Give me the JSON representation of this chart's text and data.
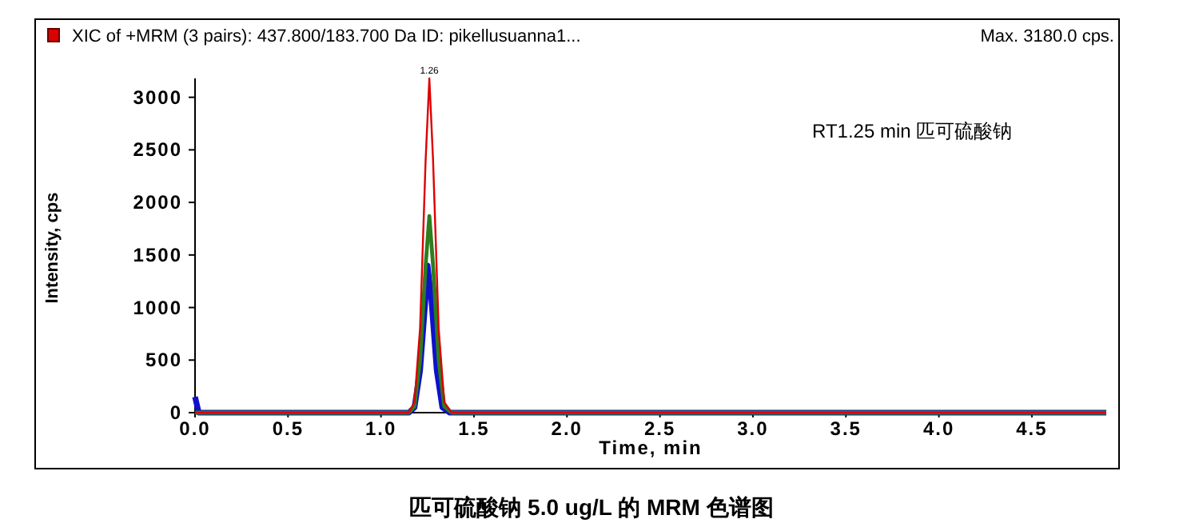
{
  "chart_data": {
    "type": "line",
    "title": "XIC of +MRM (3 pairs): 437.800/183.700 Da ID: pikellusuanna1...",
    "subtitle": "Max. 3180.0 cps.",
    "xlabel": "Time, min",
    "ylabel": "Intensity, cps",
    "xlim": [
      0,
      4.9
    ],
    "ylim": [
      0,
      3180
    ],
    "xticks": [
      {
        "value": 0,
        "label": "0.0"
      },
      {
        "value": 0.5,
        "label": "0.5"
      },
      {
        "value": 1,
        "label": "1.0"
      },
      {
        "value": 1.5,
        "label": "1.5"
      },
      {
        "value": 2,
        "label": "2.0"
      },
      {
        "value": 2.5,
        "label": "2.5"
      },
      {
        "value": 3,
        "label": "3.0"
      },
      {
        "value": 3.5,
        "label": "3.5"
      },
      {
        "value": 4,
        "label": "4.0"
      },
      {
        "value": 4.5,
        "label": "4.5"
      }
    ],
    "yticks": [
      0,
      500,
      1000,
      1500,
      2000,
      2500,
      3000
    ],
    "grid": false,
    "series": [
      {
        "color": "#dd0000",
        "x": [
          0,
          1.15,
          1.18,
          1.21,
          1.24,
          1.26,
          1.28,
          1.31,
          1.34,
          1.38,
          4.9
        ],
        "values": [
          0,
          0,
          100,
          800,
          2400,
          3180,
          2400,
          800,
          100,
          0,
          0
        ]
      },
      {
        "color": "#2e7d1e",
        "x": [
          0,
          1.15,
          1.18,
          1.21,
          1.24,
          1.26,
          1.28,
          1.31,
          1.34,
          1.38,
          4.9
        ],
        "values": [
          0,
          0,
          60,
          500,
          1400,
          1870,
          1400,
          500,
          60,
          0,
          0
        ]
      },
      {
        "color": "#1010cc",
        "x": [
          0,
          0.02,
          1.15,
          1.18,
          1.21,
          1.24,
          1.25,
          1.27,
          1.3,
          1.33,
          1.37,
          4.9
        ],
        "values": [
          150,
          0,
          0,
          50,
          400,
          1100,
          1400,
          1100,
          400,
          50,
          0,
          0
        ]
      }
    ],
    "annotations": [
      {
        "text": "1.26",
        "x": 1.26,
        "y": 3180
      },
      "RT1.25 min   匹可硫酸钠",
      "匹可硫酸钠 5.0 ug/L 的 MRM 色谱图"
    ]
  }
}
